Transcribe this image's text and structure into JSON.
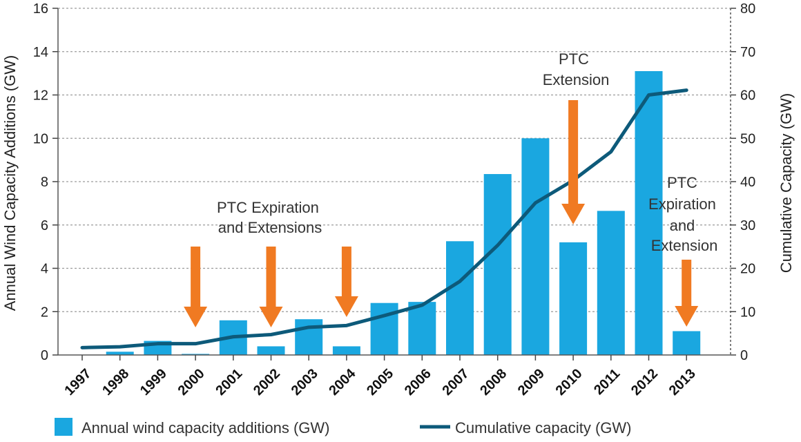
{
  "chart_data": {
    "type": "bar",
    "categories": [
      "1997",
      "1998",
      "1999",
      "2000",
      "2001",
      "2002",
      "2003",
      "2004",
      "2005",
      "2006",
      "2007",
      "2008",
      "2009",
      "2010",
      "2011",
      "2012",
      "2013"
    ],
    "series": [
      {
        "name": "Annual wind capacity additions (GW)",
        "type": "bar",
        "axis": "left",
        "color": "#1aa7e0",
        "values": [
          0.0,
          0.15,
          0.65,
          0.05,
          1.6,
          0.4,
          1.65,
          0.4,
          2.4,
          2.45,
          5.25,
          8.35,
          10.0,
          5.2,
          6.65,
          13.1,
          1.1
        ]
      },
      {
        "name": "Cumulative capacity (GW)",
        "type": "line",
        "axis": "right",
        "color": "#0d5a7a",
        "values": [
          1.7,
          1.9,
          2.6,
          2.6,
          4.2,
          4.7,
          6.4,
          6.8,
          9.1,
          11.5,
          17.0,
          25.3,
          35.1,
          40.3,
          46.9,
          60.0,
          61.1
        ]
      }
    ],
    "y_left": {
      "label": "Annual Wind Capacity Additions (GW)",
      "lim": [
        0,
        16
      ],
      "ticks": [
        "0",
        "2",
        "4",
        "6",
        "8",
        "10",
        "12",
        "14",
        "16"
      ]
    },
    "y_right": {
      "label": "Cumulative Capacity (GW)",
      "lim": [
        0,
        80
      ],
      "ticks": [
        "0",
        "10",
        "20",
        "30",
        "40",
        "50",
        "60",
        "70",
        "80"
      ]
    },
    "grid": true,
    "legend_placement": "bottom",
    "legend": [
      {
        "label": "Annual wind capacity additions (GW)",
        "symbol": "square"
      },
      {
        "label": "Cumulative capacity (GW)",
        "symbol": "line"
      }
    ],
    "annotations": {
      "arrow_color": "#f07a22",
      "arrows_at": [
        "2000",
        "2002",
        "2004",
        "2010",
        "2013"
      ],
      "labels": [
        {
          "lines": [
            "PTC Expiration",
            "and Extensions"
          ]
        },
        {
          "lines": [
            "PTC",
            "Extension"
          ]
        },
        {
          "lines": [
            "PTC",
            "Expiration",
            "and",
            "Extension"
          ]
        }
      ]
    }
  }
}
